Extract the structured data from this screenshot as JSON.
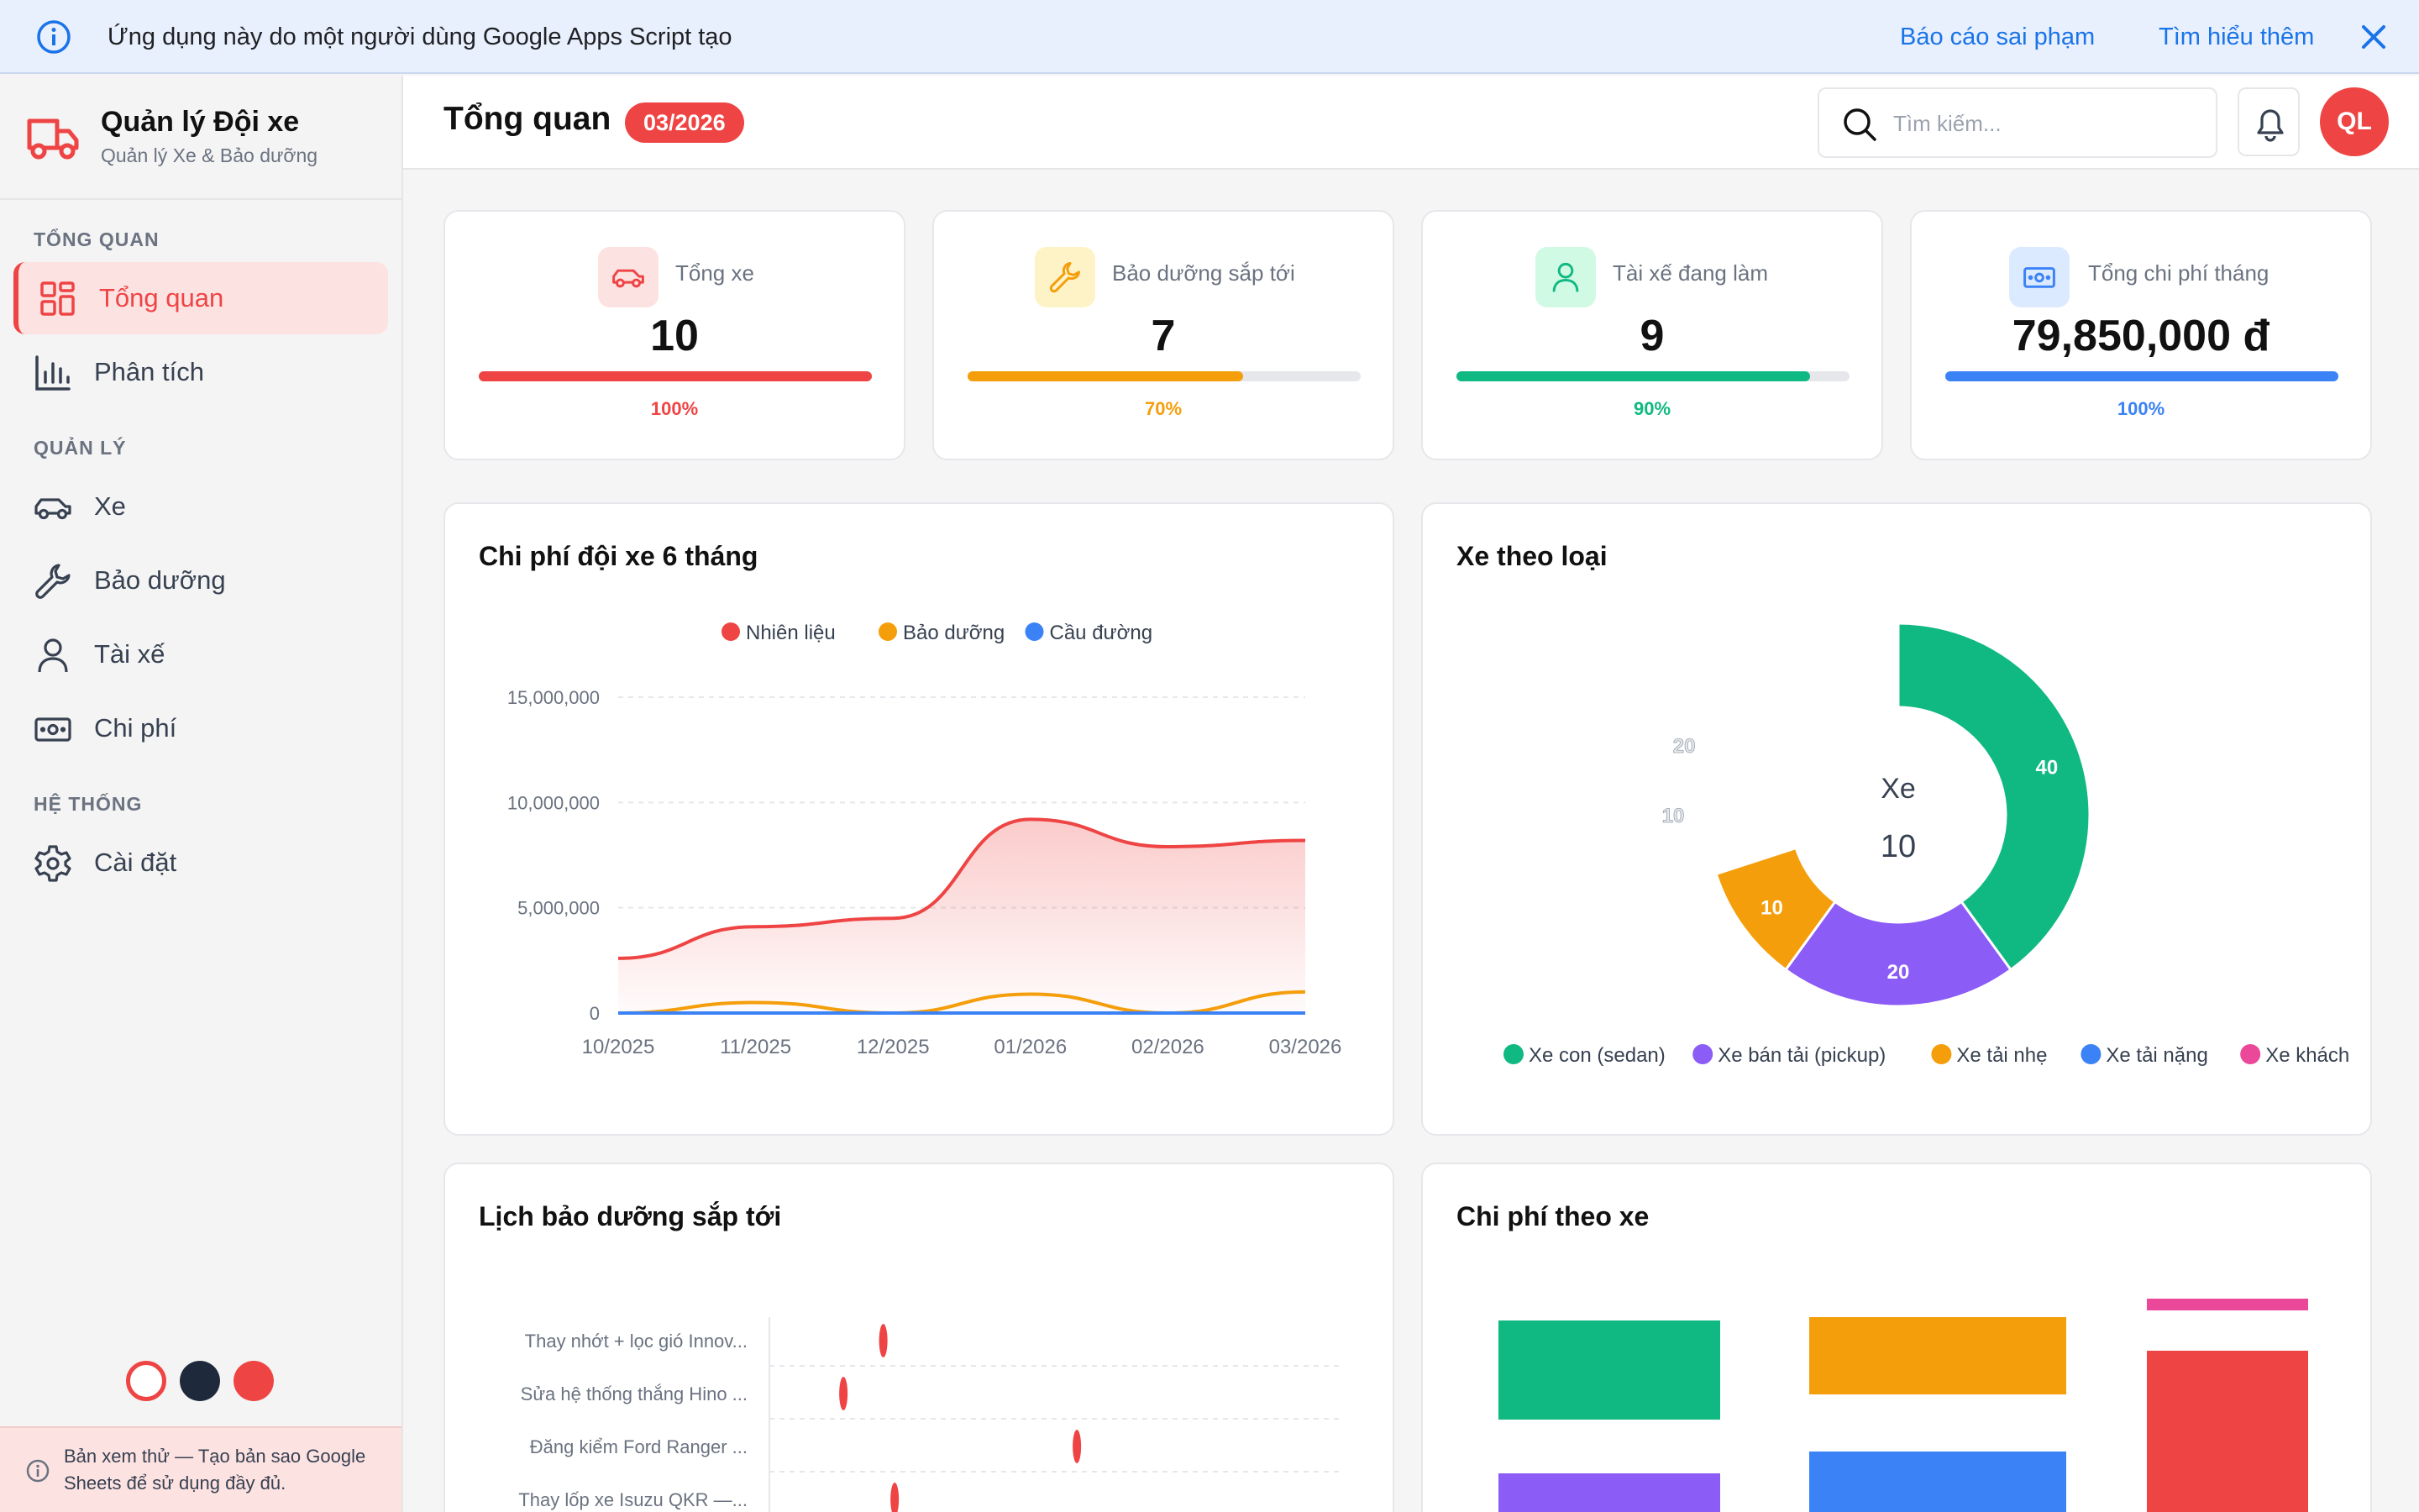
{
  "banner": {
    "message": "Ứng dụng này do một người dùng Google Apps Script tạo",
    "report_link": "Báo cáo sai phạm",
    "learn_link": "Tìm hiểu thêm"
  },
  "brand": {
    "title": "Quản lý Đội xe",
    "subtitle": "Quản lý Xe & Bảo dưỡng"
  },
  "sidebar": {
    "sections": [
      "TỔNG QUAN",
      "QUẢN LÝ",
      "HỆ THỐNG"
    ],
    "items": [
      {
        "label": "Tổng quan",
        "icon": "grid-icon",
        "active": true
      },
      {
        "label": "Phân tích",
        "icon": "bar-chart-icon"
      },
      {
        "label": "Xe",
        "icon": "car-icon"
      },
      {
        "label": "Bảo dưỡng",
        "icon": "wrench-icon"
      },
      {
        "label": "Tài xế",
        "icon": "user-icon"
      },
      {
        "label": "Chi phí",
        "icon": "money-icon"
      },
      {
        "label": "Cài đặt",
        "icon": "gear-icon"
      }
    ],
    "theme_colors": [
      "#ffffff",
      "#1e293b",
      "#ef4444"
    ],
    "preview_note": "Bản xem thử — Tạo bản sao Google Sheets để sử dụng đầy đủ."
  },
  "header": {
    "title": "Tổng quan",
    "period_badge": "03/2026",
    "search_placeholder": "Tìm kiếm...",
    "avatar_initials": "QL"
  },
  "stats": [
    {
      "label": "Tổng xe",
      "value": "10",
      "percent_label": "100%",
      "fraction": 1.0,
      "color": "#ef4444",
      "bg": "#fde2e2"
    },
    {
      "label": "Bảo dưỡng sắp tới",
      "value": "7",
      "percent_label": "70%",
      "fraction": 0.7,
      "color": "#f59e0b",
      "bg": "#fef3c7"
    },
    {
      "label": "Tài xế đang làm",
      "value": "9",
      "percent_label": "90%",
      "fraction": 0.9,
      "color": "#10b981",
      "bg": "#d1fae5"
    },
    {
      "label": "Tổng chi phí tháng",
      "value": "79,850,000 đ",
      "percent_label": "100%",
      "fraction": 1.0,
      "color": "#3b82f6",
      "bg": "#dbeafe"
    }
  ],
  "chart_data": [
    {
      "type": "area",
      "title": "Chi phí đội xe 6 tháng",
      "categories": [
        "10/2025",
        "11/2025",
        "12/2025",
        "01/2026",
        "02/2026",
        "03/2026"
      ],
      "yticks": [
        "15,000,000",
        "10,000,000",
        "5,000,000",
        "0"
      ],
      "ylim": [
        0,
        15000000
      ],
      "legend_position": "top",
      "series": [
        {
          "name": "Nhiên liệu",
          "color": "#ef4444",
          "values": [
            2600000,
            4100000,
            4500000,
            9200000,
            7900000,
            8200000
          ]
        },
        {
          "name": "Bảo dưỡng",
          "color": "#f59e0b",
          "values": [
            0,
            500000,
            0,
            900000,
            0,
            1000000
          ]
        },
        {
          "name": "Cầu đường",
          "color": "#3b82f6",
          "values": [
            0,
            0,
            0,
            0,
            0,
            0
          ]
        }
      ]
    },
    {
      "type": "pie",
      "title": "Xe theo loại",
      "center_label": "Xe",
      "center_value": "10",
      "legend_position": "bottom",
      "slices": [
        {
          "name": "Xe con (sedan)",
          "color": "#10b981",
          "value": 40,
          "label": "40"
        },
        {
          "name": "Xe bán tải (pickup)",
          "color": "#8b5cf6",
          "value": 20,
          "label": "20"
        },
        {
          "name": "Xe tải nhẹ",
          "color": "#f59e0b",
          "value": 10,
          "label": "10"
        },
        {
          "name": "Xe tải nặng",
          "color": "#3b82f6",
          "value": 10,
          "label": "10"
        },
        {
          "name": "Xe khách",
          "color": "#ec4899",
          "value": 20,
          "label": "20"
        }
      ]
    },
    {
      "type": "scatter",
      "title": "Lịch bảo dưỡng sắp tới",
      "categories": [
        "Thay nhớt + lọc gió Innov...",
        "Sửa hệ thống thắng Hino ...",
        "Đăng kiểm Ford Ranger ...",
        "Thay lốp xe Isuzu QKR —..."
      ],
      "x_fractions": [
        0.2,
        0.13,
        0.54,
        0.22
      ]
    },
    {
      "type": "table",
      "title": "Chi phí theo xe"
    }
  ]
}
